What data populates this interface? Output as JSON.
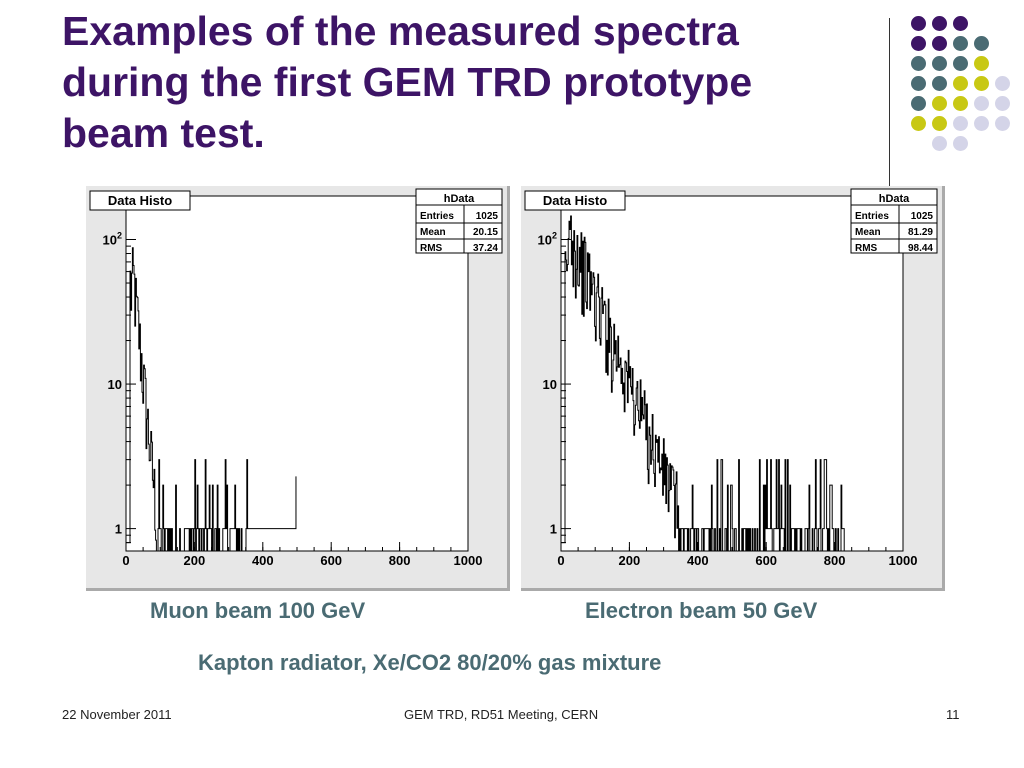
{
  "slide": {
    "title_lines": [
      "Examples of the measured spectra",
      "during the first GEM TRD prototype",
      "beam test."
    ],
    "caption_muon": "Muon beam 100 GeV",
    "caption_electron": "Electron beam 50 GeV",
    "subtitle": "Kapton radiator,  Xe/CO2 80/20% gas mixture",
    "footer_date": "22 November 2011",
    "footer_center": "GEM TRD,  RD51 Meeting, CERN",
    "page_number": "11"
  },
  "colors": {
    "title": "#3d1466",
    "caption": "#4a6b73",
    "dot_purple": "#3d1466",
    "dot_teal": "#4a6b73",
    "dot_olive": "#c8c814",
    "dot_lavender": "#d4d4e8"
  },
  "chart_data": [
    {
      "type": "histogram",
      "title": "Data Histo",
      "stats_box": {
        "name": "hData",
        "rows": [
          [
            "Entries",
            "1025"
          ],
          [
            "Mean",
            "20.15"
          ],
          [
            "RMS",
            "37.24"
          ]
        ]
      },
      "xlim": [
        0,
        1000
      ],
      "x_ticks": [
        "0",
        "200",
        "400",
        "600",
        "800",
        "1000"
      ],
      "y_scale": "log",
      "ylim": [
        0.7,
        200
      ],
      "y_ticks": [
        "1",
        "10",
        "10^2"
      ],
      "grid": false,
      "profile": {
        "kind": "muon",
        "peak": 50,
        "decay_scale": 18,
        "tail_end": 360,
        "extra_spikes": [
          497
        ]
      }
    },
    {
      "type": "histogram",
      "title": "Data Histo",
      "stats_box": {
        "name": "hData",
        "rows": [
          [
            "Entries",
            "1025"
          ],
          [
            "Mean",
            "81.29"
          ],
          [
            "RMS",
            "98.44"
          ]
        ]
      },
      "xlim": [
        0,
        1000
      ],
      "x_ticks": [
        "0",
        "200",
        "400",
        "600",
        "800",
        "1000"
      ],
      "y_scale": "log",
      "ylim": [
        0.7,
        200
      ],
      "y_ticks": [
        "1",
        "10",
        "10^2"
      ],
      "grid": false,
      "profile": {
        "kind": "electron",
        "peak": 110,
        "decay_scale": 72,
        "tail_end": 830,
        "extra_spikes": []
      }
    }
  ]
}
